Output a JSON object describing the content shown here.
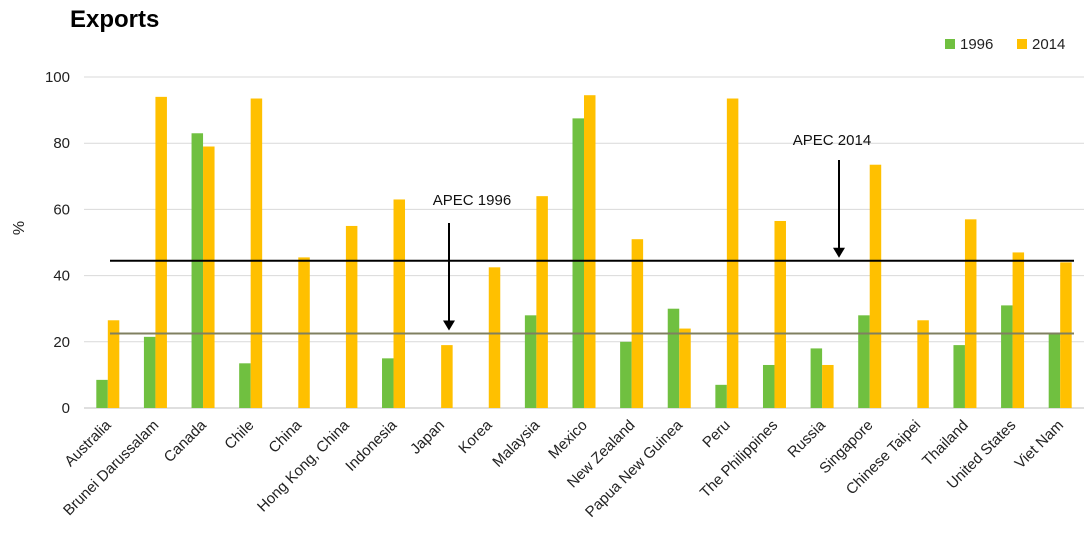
{
  "chart_data": {
    "type": "bar",
    "title": "Exports",
    "xlabel": "",
    "ylabel": "%",
    "ylim": [
      0,
      100
    ],
    "yticks": [
      0,
      20,
      40,
      60,
      80,
      100
    ],
    "grid": true,
    "legend_position": "top-right",
    "categories": [
      "Australia",
      "Brunei Darussalam",
      "Canada",
      "Chile",
      "China",
      "Hong Kong, China",
      "Indonesia",
      "Japan",
      "Korea",
      "Malaysia",
      "Mexico",
      "New Zealand",
      "Papua New Guinea",
      "Peru",
      "The Philippines",
      "Russia",
      "Singapore",
      "Chinese Taipei",
      "Thailand",
      "United States",
      "Viet Nam"
    ],
    "series": [
      {
        "name": "1996",
        "color": "#70c040",
        "values": [
          8.5,
          21.5,
          83,
          13.5,
          null,
          null,
          15,
          null,
          null,
          28,
          87.5,
          20,
          30,
          7,
          13,
          18,
          28,
          null,
          19,
          31,
          22.5
        ]
      },
      {
        "name": "2014",
        "color": "#ffc000",
        "values": [
          26.5,
          94,
          79,
          93.5,
          45.5,
          55,
          63,
          19,
          42.5,
          64,
          94.5,
          51,
          24,
          93.5,
          56.5,
          13,
          73.5,
          26.5,
          57,
          47,
          44
        ]
      }
    ],
    "reference_lines": [
      {
        "label": "APEC 1996",
        "value": 22.5,
        "color": "#808060"
      },
      {
        "label": "APEC 2014",
        "value": 44.5,
        "color": "#000000"
      }
    ]
  }
}
